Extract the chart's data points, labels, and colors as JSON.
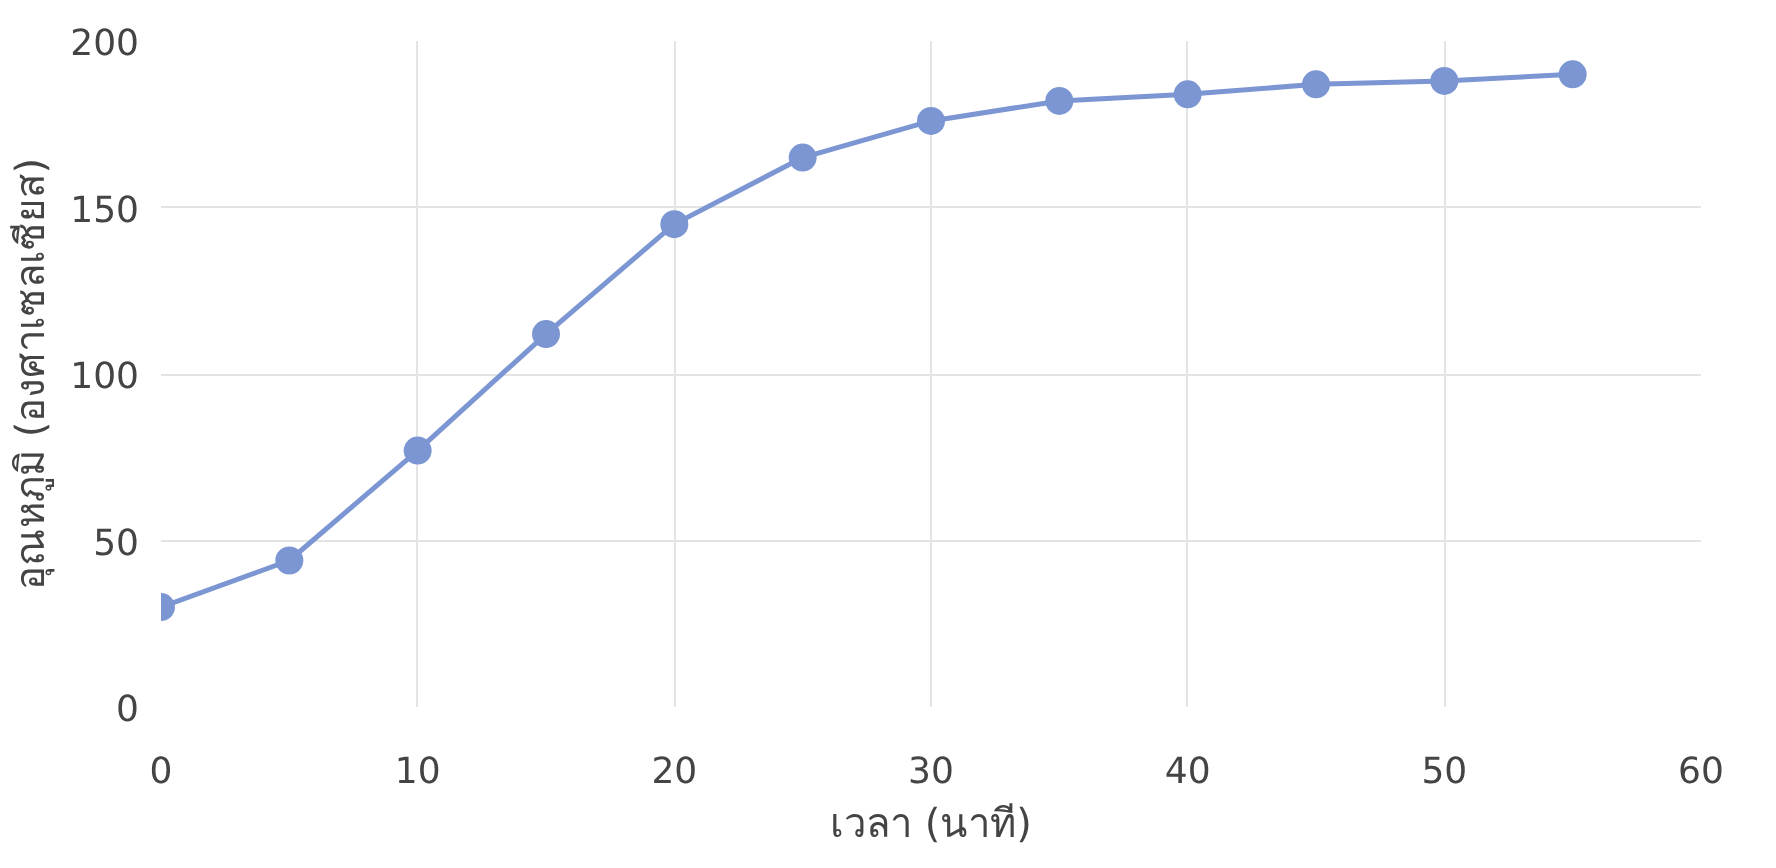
{
  "chart_data": {
    "type": "line",
    "xlabel": "เวลา (นาที)",
    "ylabel": "อุณหภูมิ (องศาเซลเซียส)",
    "x": [
      0,
      5,
      10,
      15,
      20,
      25,
      30,
      35,
      40,
      45,
      50,
      55
    ],
    "series": [
      {
        "color": "#7b96d2",
        "values": [
          30,
          44,
          77,
          112,
          145,
          165,
          176,
          182,
          184,
          187,
          188,
          190
        ]
      }
    ],
    "xlim": [
      0,
      60
    ],
    "xticks": [
      0,
      10,
      20,
      30,
      40,
      50,
      60
    ],
    "ylim": [
      0,
      200
    ],
    "yticks": [
      0,
      50,
      100,
      150,
      200
    ],
    "grid": true,
    "marker": "circle",
    "line_style": "solid"
  }
}
